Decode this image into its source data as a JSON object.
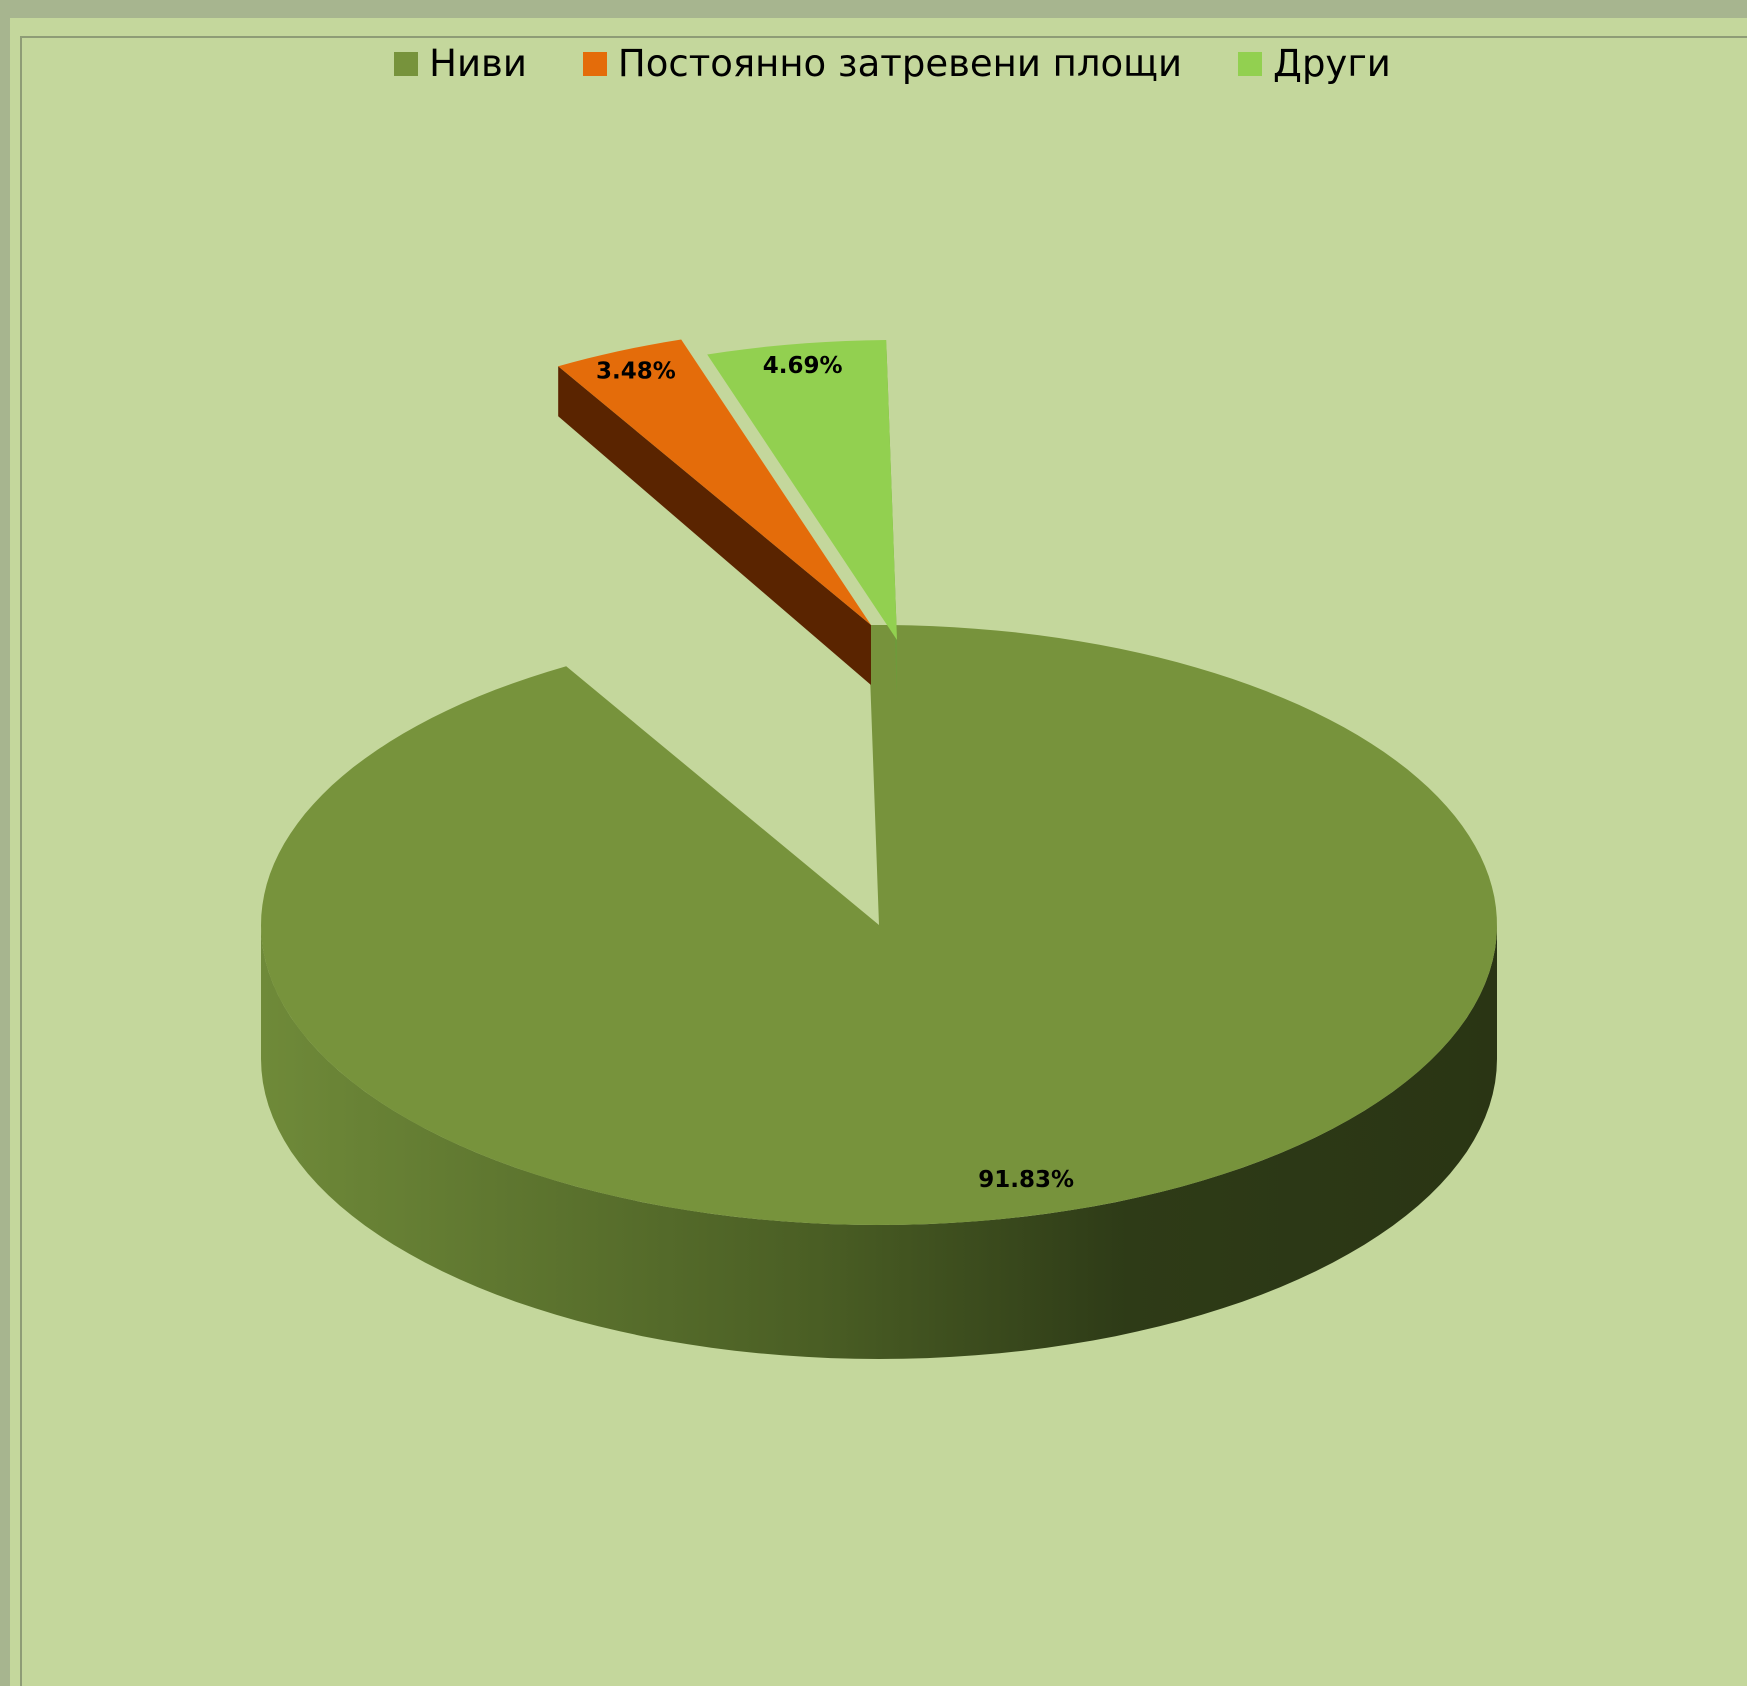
{
  "chart_data": {
    "type": "pie",
    "title": "",
    "slices": [
      {
        "name": "Ниви",
        "value": 91.83,
        "label": "91.83%",
        "color": "#77933c"
      },
      {
        "name": "Постоянно затревени площи",
        "value": 3.48,
        "label": "3.48%",
        "color": "#e46c0a"
      },
      {
        "name": "Други",
        "value": 4.69,
        "label": "4.69%",
        "color": "#92d050"
      }
    ],
    "legend_position": "top",
    "style": "3d-exploded",
    "background_color": "#c4d79c"
  }
}
